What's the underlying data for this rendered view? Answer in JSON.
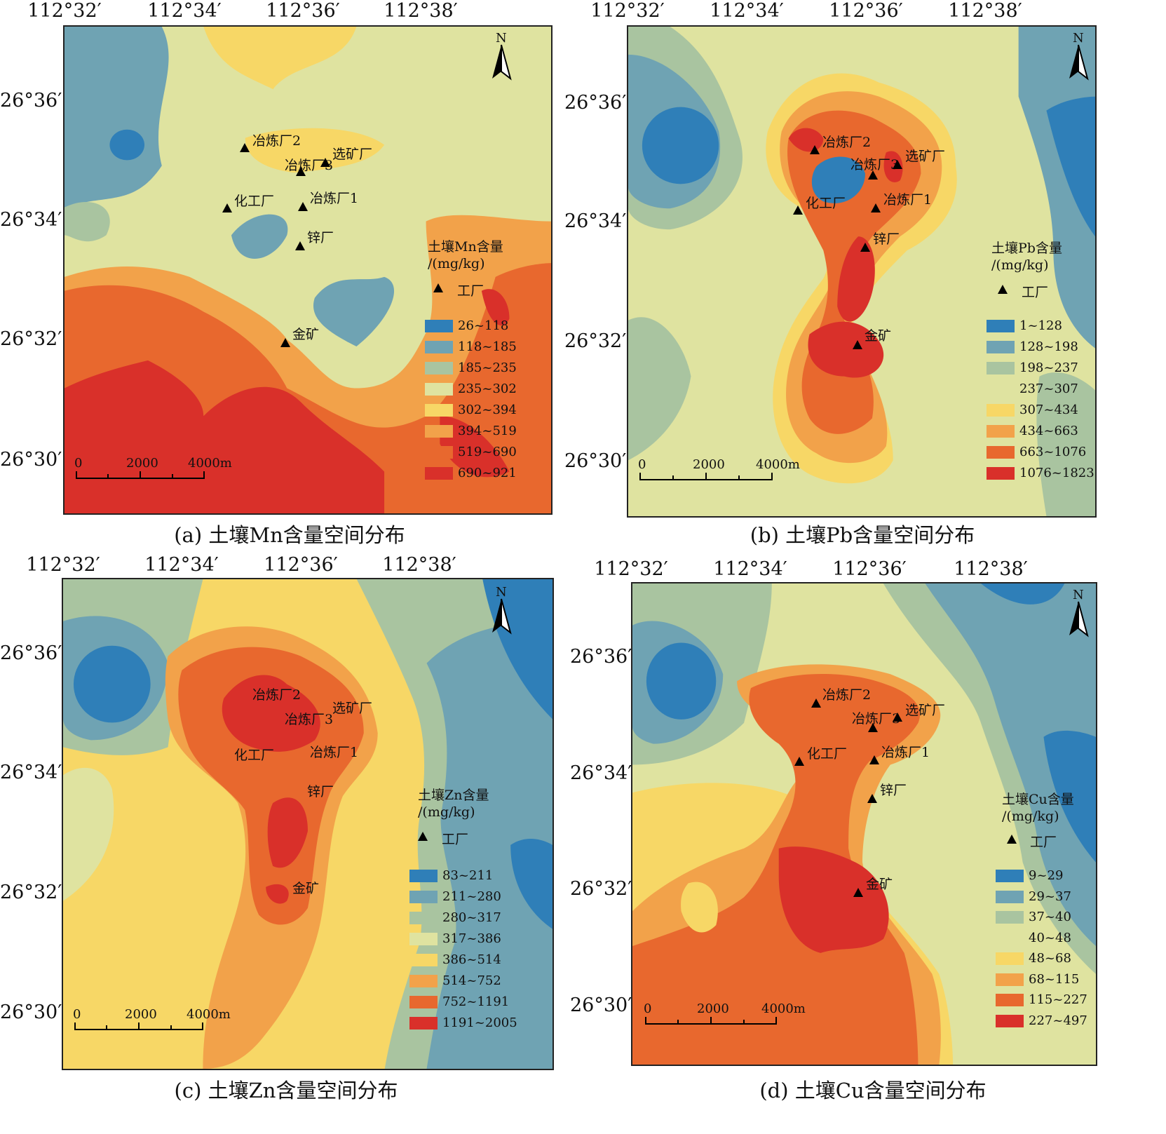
{
  "lon_ticks": [
    "112°32′",
    "112°34′",
    "112°36′",
    "112°38′"
  ],
  "lat_ticks": [
    "26°36′",
    "26°34′",
    "26°32′",
    "26°30′"
  ],
  "north_label": "N",
  "scale_labels": [
    "0",
    "2000",
    "4000m"
  ],
  "factory_legend_label": "工厂",
  "panels": [
    {
      "caption": "(a) 土壤Mn含量空间分布",
      "legend_title": [
        "土壤Mn含量",
        "/(mg/kg)"
      ],
      "classes": [
        "26~118",
        "118~185",
        "185~235",
        "235~302",
        "302~394",
        "394~519",
        "519~690",
        "690~921"
      ],
      "sites": [
        "冶炼厂2",
        "冶炼厂3",
        "选矿厂",
        "化工厂",
        "冶炼厂1",
        "锌厂",
        "金矿"
      ]
    },
    {
      "caption": "(b) 土壤Pb含量空间分布",
      "legend_title": [
        "土壤Pb含量",
        "/(mg/kg)"
      ],
      "classes": [
        "1~128",
        "128~198",
        "198~237",
        "237~307",
        "307~434",
        "434~663",
        "663~1076",
        "1076~1823"
      ],
      "sites": [
        "冶炼厂2",
        "冶炼厂3",
        "选矿厂",
        "化工厂",
        "冶炼厂1",
        "锌厂",
        "金矿"
      ]
    },
    {
      "caption": "(c) 土壤Zn含量空间分布",
      "legend_title": [
        "土壤Zn含量",
        "/(mg/kg)"
      ],
      "classes": [
        "83~211",
        "211~280",
        "280~317",
        "317~386",
        "386~514",
        "514~752",
        "752~1191",
        "1191~2005"
      ],
      "sites": [
        "冶炼厂2",
        "冶炼厂3",
        "选矿厂",
        "化工厂",
        "冶炼厂1",
        "锌厂",
        "金矿"
      ]
    },
    {
      "caption": "(d) 土壤Cu含量空间分布",
      "legend_title": [
        "土壤Cu含量",
        "/(mg/kg)"
      ],
      "classes": [
        "9~29",
        "29~37",
        "37~40",
        "40~48",
        "48~68",
        "68~115",
        "115~227",
        "227~497"
      ],
      "sites": [
        "冶炼厂2",
        "冶炼厂3",
        "选矿厂",
        "化工厂",
        "冶炼厂1",
        "锌厂",
        "金矿"
      ]
    }
  ],
  "class_colors": [
    "#2f7fb8",
    "#6fa3b3",
    "#a9c4a0",
    "#dfe3a0",
    "#f7d766",
    "#f2a24a",
    "#e8682e",
    "#d9302a"
  ]
}
